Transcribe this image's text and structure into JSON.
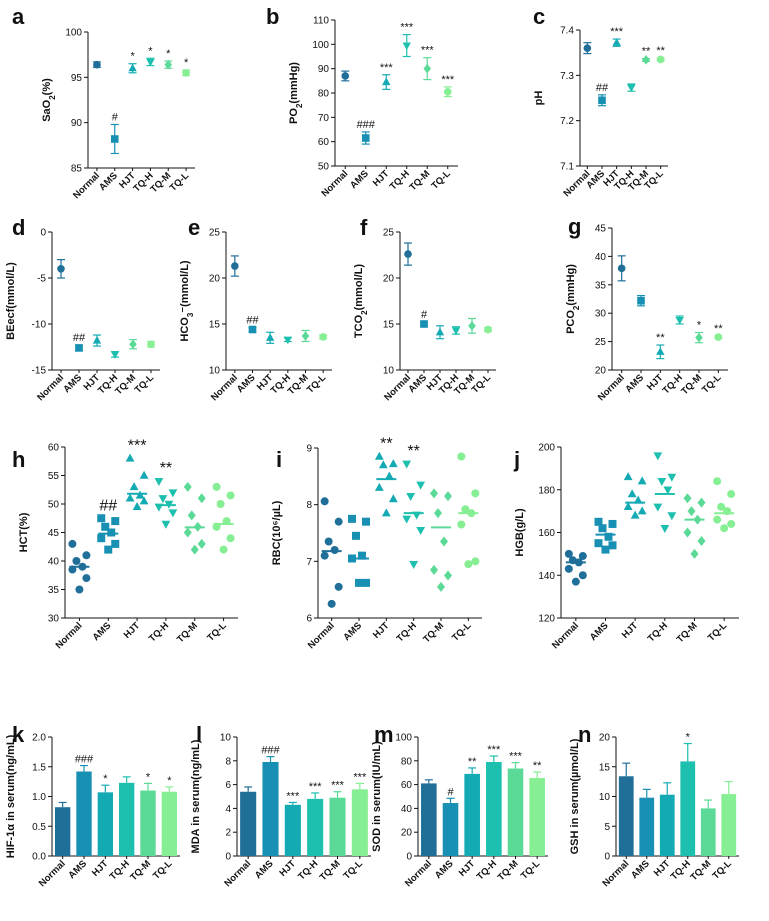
{
  "figure": {
    "groups": [
      "Normal",
      "AMS",
      "HJT",
      "TQ-H",
      "TQ-M",
      "TQ-L"
    ],
    "colors": [
      "#1f6f99",
      "#1790b3",
      "#14aab4",
      "#1dbfae",
      "#5bd996",
      "#86ee93"
    ]
  },
  "chart_data": [
    {
      "id": "a",
      "type": "scatter",
      "title": "",
      "ylabel": "SaO2(%)",
      "ylim": [
        85,
        100
      ],
      "yticks": [
        85,
        90,
        95,
        100
      ],
      "ytick_labels": [
        "85",
        "90",
        "95",
        "100"
      ],
      "means": [
        96.4,
        88.2,
        96.0,
        96.7,
        96.4,
        95.5
      ],
      "errors": [
        0.3,
        1.6,
        0.5,
        0.4,
        0.4,
        0.3
      ],
      "markers": [
        "circle",
        "square",
        "triangle-up",
        "triangle-down",
        "diamond",
        "circle"
      ],
      "sig": [
        "",
        "#",
        "*",
        "*",
        "*",
        "*"
      ]
    },
    {
      "id": "b",
      "type": "scatter",
      "title": "",
      "ylabel": "PO2(mmHg)",
      "ylim": [
        50,
        110
      ],
      "yticks": [
        50,
        60,
        70,
        80,
        90,
        100,
        110
      ],
      "ytick_labels": [
        "50",
        "60",
        "70",
        "80",
        "90",
        "100",
        "110"
      ],
      "means": [
        87,
        61.5,
        84.5,
        99.5,
        90,
        80.5
      ],
      "errors": [
        2,
        2.5,
        3,
        4.5,
        4.5,
        2
      ],
      "markers": [
        "circle",
        "square",
        "triangle-up",
        "triangle-down",
        "diamond",
        "circle"
      ],
      "sig": [
        "",
        "###",
        "***",
        "***",
        "***",
        "***"
      ]
    },
    {
      "id": "c",
      "type": "scatter",
      "title": "",
      "ylabel": "pH",
      "ylim": [
        7.1,
        7.4
      ],
      "yticks": [
        7.1,
        7.2,
        7.3,
        7.4
      ],
      "ytick_labels": [
        "7.1",
        "7.2",
        "7.3",
        "7.4"
      ],
      "means": [
        7.36,
        7.245,
        7.372,
        7.273,
        7.334,
        7.335
      ],
      "errors": [
        0.012,
        0.012,
        0.008,
        0.008,
        0.003,
        0.003
      ],
      "markers": [
        "circle",
        "square",
        "triangle-up",
        "triangle-down",
        "diamond",
        "circle"
      ],
      "sig": [
        "",
        "##",
        "***",
        "",
        "**",
        "**"
      ]
    },
    {
      "id": "d",
      "type": "scatter",
      "title": "",
      "ylabel": "BEecf(mmol/L)",
      "ylim": [
        -15,
        0
      ],
      "yticks": [
        -15,
        -10,
        -5,
        0
      ],
      "ytick_labels": [
        "-15",
        "-10",
        "-5",
        "0"
      ],
      "means": [
        -4.0,
        -12.6,
        -11.8,
        -13.3,
        -12.2,
        -12.2
      ],
      "errors": [
        1.0,
        0.3,
        0.6,
        0.3,
        0.5,
        0.3
      ],
      "markers": [
        "circle",
        "square",
        "triangle-up",
        "triangle-down",
        "diamond",
        "circle"
      ],
      "sig": [
        "",
        "##",
        "",
        "",
        "",
        ""
      ]
    },
    {
      "id": "e",
      "type": "scatter",
      "title": "",
      "ylabel": "HCO3⁻(mmol/L)",
      "ylim": [
        10,
        25
      ],
      "yticks": [
        10,
        15,
        20,
        25
      ],
      "ytick_labels": [
        "10",
        "15",
        "20",
        "25"
      ],
      "means": [
        21.3,
        14.4,
        13.5,
        13.3,
        13.7,
        13.6
      ],
      "errors": [
        1.1,
        0.2,
        0.6,
        0.2,
        0.6,
        0.2
      ],
      "markers": [
        "circle",
        "square",
        "triangle-up",
        "triangle-down",
        "diamond",
        "circle"
      ],
      "sig": [
        "",
        "##",
        "",
        "",
        "",
        ""
      ]
    },
    {
      "id": "f",
      "type": "scatter",
      "title": "",
      "ylabel": "TCO2(mmol/L)",
      "ylim": [
        10,
        25
      ],
      "yticks": [
        10,
        15,
        20,
        25
      ],
      "ytick_labels": [
        "10",
        "15",
        "20",
        "25"
      ],
      "means": [
        22.6,
        15.0,
        14.1,
        14.3,
        14.8,
        14.4
      ],
      "errors": [
        1.2,
        0.2,
        0.7,
        0.4,
        0.8,
        0.2
      ],
      "markers": [
        "circle",
        "square",
        "triangle-up",
        "triangle-down",
        "diamond",
        "circle"
      ],
      "sig": [
        "",
        "#",
        "",
        "",
        "",
        ""
      ]
    },
    {
      "id": "g",
      "type": "scatter",
      "title": "",
      "ylabel": "PCO2(mmHg)",
      "ylim": [
        20,
        45
      ],
      "yticks": [
        20,
        25,
        30,
        35,
        40,
        45
      ],
      "ytick_labels": [
        "20",
        "25",
        "30",
        "35",
        "40",
        "45"
      ],
      "means": [
        37.9,
        32.2,
        23.2,
        28.8,
        25.7,
        25.8
      ],
      "errors": [
        2.2,
        0.9,
        1.2,
        0.7,
        0.9,
        0.2
      ],
      "markers": [
        "circle",
        "square",
        "triangle-up",
        "triangle-down",
        "diamond",
        "circle"
      ],
      "sig": [
        "",
        "",
        "**",
        "",
        "*",
        "**"
      ]
    },
    {
      "id": "h",
      "type": "scatter",
      "title": "",
      "ylabel": "HCT(%)",
      "ylim": [
        30,
        60
      ],
      "yticks": [
        30,
        35,
        40,
        45,
        50,
        55,
        60
      ],
      "ytick_labels": [
        "30",
        "35",
        "40",
        "45",
        "50",
        "55",
        "60"
      ],
      "means": [
        39.0,
        44.8,
        51.8,
        49.8,
        45.9,
        46.5
      ],
      "points": [
        [
          43,
          41,
          40,
          39,
          38.5,
          37,
          35
        ],
        [
          47.5,
          47,
          46,
          45,
          44,
          43,
          42
        ],
        [
          58,
          55,
          53,
          51.5,
          51,
          50.5,
          49.5
        ],
        [
          54,
          52,
          51,
          50,
          49.5,
          48.5,
          46.5
        ],
        [
          53,
          51,
          48,
          46,
          45,
          43,
          42
        ],
        [
          53,
          51.5,
          50,
          47,
          46,
          44,
          42
        ]
      ],
      "markers": [
        "circle",
        "square",
        "triangle-up",
        "triangle-down",
        "diamond",
        "circle"
      ],
      "sig": [
        "",
        "##",
        "***",
        "**",
        "",
        ""
      ]
    },
    {
      "id": "i",
      "type": "scatter",
      "title": "",
      "ylabel": "RBC(10⁶/µL)",
      "ylim": [
        6,
        9
      ],
      "yticks": [
        6,
        7,
        8,
        9
      ],
      "ytick_labels": [
        "6",
        "7",
        "8",
        "9"
      ],
      "means": [
        7.18,
        7.05,
        8.45,
        7.85,
        7.6,
        7.85
      ],
      "points": [
        [
          8.06,
          7.7,
          7.35,
          7.2,
          7.1,
          6.55,
          6.25
        ],
        [
          7.75,
          7.7,
          7.45,
          7.1,
          7.05,
          6.62,
          6.62
        ],
        [
          8.85,
          8.72,
          8.7,
          8.5,
          8.3,
          8.1,
          7.85
        ],
        [
          8.72,
          8.35,
          8.15,
          7.82,
          7.75,
          7.55,
          6.95
        ],
        [
          8.2,
          8.15,
          7.85,
          7.35,
          6.85,
          6.75,
          6.55
        ],
        [
          8.85,
          8.2,
          7.92,
          7.85,
          7.65,
          7.0,
          6.95
        ]
      ],
      "markers": [
        "circle",
        "square",
        "triangle-up",
        "triangle-down",
        "diamond",
        "circle"
      ],
      "sig": [
        "",
        "",
        "**",
        "**",
        "",
        ""
      ]
    },
    {
      "id": "j",
      "type": "scatter",
      "title": "",
      "ylabel": "HGB(g/L)",
      "ylim": [
        120,
        200
      ],
      "yticks": [
        120,
        140,
        160,
        180,
        200
      ],
      "ytick_labels": [
        "120",
        "140",
        "160",
        "180",
        "200"
      ],
      "means": [
        146,
        159,
        174,
        178,
        166,
        169
      ],
      "points": [
        [
          150,
          149,
          147,
          146,
          143,
          140,
          137
        ],
        [
          165,
          164,
          162,
          158,
          155,
          154,
          152
        ],
        [
          186,
          184,
          178,
          175,
          172,
          170,
          168
        ],
        [
          196,
          186,
          184,
          180,
          172,
          168,
          162
        ],
        [
          176,
          174,
          170,
          166,
          160,
          156,
          150
        ],
        [
          184,
          178,
          172,
          170,
          166,
          164,
          162
        ]
      ],
      "markers": [
        "circle",
        "square",
        "triangle-up",
        "triangle-down",
        "diamond",
        "circle"
      ],
      "sig": [
        "",
        "",
        "",
        "",
        "",
        ""
      ]
    },
    {
      "id": "k",
      "type": "bar",
      "title": "",
      "ylabel": "HIF-1α in serum(ng/mL)",
      "ylim": [
        0,
        2.0
      ],
      "yticks": [
        0,
        0.5,
        1.0,
        1.5,
        2.0
      ],
      "ytick_labels": [
        "0.0",
        "0.5",
        "1.0",
        "1.5",
        "2.0"
      ],
      "values": [
        0.82,
        1.42,
        1.07,
        1.23,
        1.1,
        1.08
      ],
      "errors": [
        0.08,
        0.1,
        0.12,
        0.1,
        0.12,
        0.08
      ],
      "sig": [
        "",
        "###",
        "*",
        "",
        "*",
        "*"
      ]
    },
    {
      "id": "l",
      "type": "bar",
      "title": "",
      "ylabel": "MDA in serum(ng/mL)",
      "ylim": [
        0,
        10
      ],
      "yticks": [
        0,
        2,
        4,
        6,
        8,
        10
      ],
      "ytick_labels": [
        "0",
        "2",
        "4",
        "6",
        "8",
        "10"
      ],
      "values": [
        5.4,
        7.9,
        4.3,
        4.8,
        4.9,
        5.6
      ],
      "errors": [
        0.4,
        0.45,
        0.2,
        0.5,
        0.5,
        0.5
      ],
      "sig": [
        "",
        "###",
        "***",
        "***",
        "***",
        "***"
      ]
    },
    {
      "id": "m",
      "type": "bar",
      "title": "",
      "ylabel": "SOD in serum(IU/mL)",
      "ylim": [
        0,
        100
      ],
      "yticks": [
        0,
        20,
        40,
        60,
        80,
        100
      ],
      "ytick_labels": [
        "0",
        "20",
        "40",
        "60",
        "80",
        "100"
      ],
      "values": [
        61,
        44.5,
        69,
        79,
        73.5,
        65.5
      ],
      "errors": [
        3,
        4,
        5,
        5,
        5,
        5
      ],
      "sig": [
        "",
        "#",
        "**",
        "***",
        "***",
        "**"
      ]
    },
    {
      "id": "n",
      "type": "bar",
      "title": "",
      "ylabel": "GSH in serum(µmol/L)",
      "ylim": [
        0,
        20
      ],
      "yticks": [
        0,
        5,
        10,
        15,
        20
      ],
      "ytick_labels": [
        "0",
        "5",
        "10",
        "15",
        "20"
      ],
      "values": [
        13.4,
        9.8,
        10.3,
        15.9,
        8.0,
        10.4
      ],
      "errors": [
        2.2,
        1.4,
        2.0,
        3.0,
        1.4,
        2.1
      ],
      "sig": [
        "",
        "",
        "",
        "*",
        "",
        ""
      ]
    }
  ]
}
